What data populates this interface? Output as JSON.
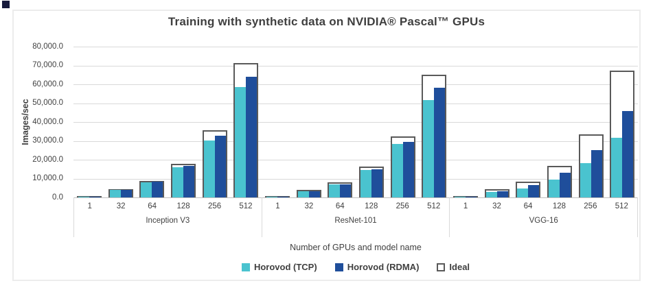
{
  "chart_data": {
    "type": "bar",
    "title": "Training with synthetic data on NVIDIA® Pascal™ GPUs",
    "xlabel": "Number of GPUs and model name",
    "ylabel": "Images/sec",
    "ylim": [
      0,
      80000
    ],
    "grid": true,
    "legend_position": "bottom",
    "y_ticks": [
      "80,000.0",
      "70,000.0",
      "60,000.0",
      "50,000.0",
      "40,000.0",
      "30,000.0",
      "20,000.0",
      "10,000.0",
      "0.0"
    ],
    "gpu_counts": [
      "1",
      "32",
      "64",
      "128",
      "256",
      "512"
    ],
    "groups": [
      {
        "model": "Inception V3",
        "series": {
          "horovod_tcp": [
            139,
            4000,
            8000,
            15900,
            30200,
            58700
          ],
          "horovod_rdma": [
            139,
            4050,
            8400,
            16600,
            32600,
            63900
          ],
          "ideal": [
            139,
            4450,
            8900,
            17800,
            35600,
            71200
          ]
        }
      },
      {
        "model": "ResNet-101",
        "series": {
          "horovod_tcp": [
            127,
            3300,
            6950,
            14650,
            28300,
            51500
          ],
          "horovod_rdma": [
            127,
            3350,
            6950,
            14900,
            29300,
            58200
          ],
          "ideal": [
            127,
            4060,
            8130,
            16260,
            32500,
            65000
          ]
        }
      },
      {
        "model": "VGG-16",
        "series": {
          "horovod_tcp": [
            131,
            2900,
            4900,
            9400,
            18200,
            31500
          ],
          "horovod_rdma": [
            131,
            3300,
            6400,
            13000,
            25000,
            45800
          ],
          "ideal": [
            131,
            4200,
            8400,
            16800,
            33600,
            67200
          ]
        }
      }
    ],
    "legend": [
      {
        "label": "Horovod (TCP)",
        "color": "#4ac3cf",
        "style": "fill"
      },
      {
        "label": "Horovod (RDMA)",
        "color": "#1f4e9b",
        "style": "fill"
      },
      {
        "label": "Ideal",
        "color": "#595959",
        "style": "outline"
      }
    ]
  },
  "colors": {
    "tcp": "#4ac3cf",
    "rdma": "#1f4e9b",
    "ideal_outline": "#595959",
    "gridline": "#d9d9d9",
    "axis_line": "#c0c0c0",
    "text": "#404040",
    "panel_border": "#ececec",
    "corner_mark": "#171a3c"
  }
}
